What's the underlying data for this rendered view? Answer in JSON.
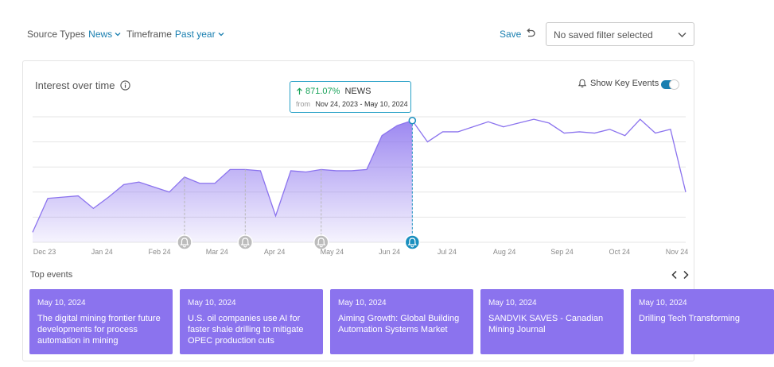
{
  "filters": {
    "source_types": {
      "label": "Source Types",
      "value": "News"
    },
    "timeframe": {
      "label": "Timeframe",
      "value": "Past year"
    }
  },
  "save_label": "Save",
  "saved_filter": {
    "value": "No saved filter selected"
  },
  "card": {
    "title": "Interest over time",
    "show_key_events_label": "Show Key Events",
    "show_key_events_on": true
  },
  "tooltip": {
    "change": "871.07%",
    "source": "NEWS",
    "from_label": "from",
    "range": "Nov 24, 2023 - May 10, 2024"
  },
  "icons": {
    "info": "info-icon",
    "bell": "bell-icon",
    "undo": "undo-icon",
    "chevron": "chevron-down-icon",
    "arrow_up": "arrow-up-icon"
  },
  "colors": {
    "accent": "#1a7fb0",
    "series": "#8b73ee",
    "positive": "#19a35a",
    "marker_active": "#1a8fbf",
    "marker_inactive": "#bcbcbc"
  },
  "chart_data": {
    "type": "area",
    "x_ticks": [
      "Dec 23",
      "Jan 24",
      "Feb 24",
      "Mar 24",
      "Apr 24",
      "May 24",
      "Jun 24",
      "Jul 24",
      "Aug 24",
      "Sep 24",
      "Oct 24",
      "Nov 24"
    ],
    "series": [
      {
        "values": [
          8,
          35,
          36,
          37,
          27,
          36,
          46,
          48,
          44,
          40,
          52,
          47,
          47,
          58,
          58,
          57,
          21,
          57,
          56,
          58,
          57,
          57,
          58,
          85,
          93,
          97,
          80,
          88,
          88,
          92,
          96,
          92,
          95,
          98,
          95,
          87,
          88,
          87,
          90,
          85,
          98,
          87,
          90,
          40
        ]
      }
    ],
    "highlight_index": 25,
    "key_event_indices": [
      10,
      14,
      19,
      25
    ],
    "active_event_index": 25,
    "ylim": [
      0,
      100
    ],
    "grid": true
  },
  "top_events": {
    "label": "Top events",
    "items": [
      {
        "date": "May 10, 2024",
        "title": "The digital mining frontier future developments for process automation in mining"
      },
      {
        "date": "May 10, 2024",
        "title": "U.S. oil companies use AI for faster shale drilling to mitigate OPEC production cuts"
      },
      {
        "date": "May 10, 2024",
        "title": "Aiming Growth: Global Building Automation Systems Market"
      },
      {
        "date": "May 10, 2024",
        "title": "SANDVIK SAVES - Canadian Mining Journal"
      },
      {
        "date": "May 10, 2024",
        "title": "Drilling Tech Transforming"
      }
    ]
  }
}
